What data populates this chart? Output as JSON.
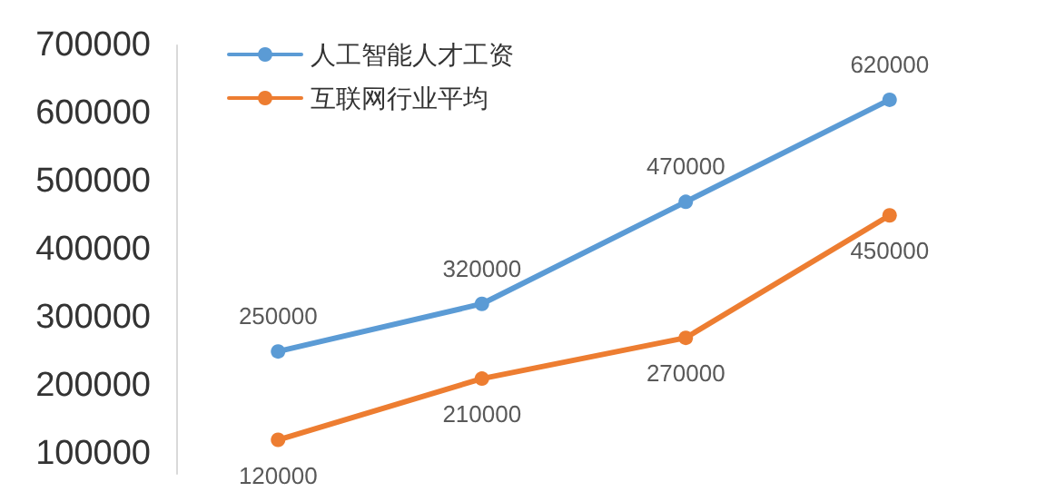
{
  "chart_data": {
    "type": "line",
    "categories": [
      null,
      null,
      null,
      null
    ],
    "series": [
      {
        "name": "人工智能人才工资",
        "color": "#5b9bd5",
        "values": [
          250000,
          320000,
          470000,
          620000
        ]
      },
      {
        "name": "互联网行业平均",
        "color": "#ed7d31",
        "values": [
          120000,
          210000,
          270000,
          450000
        ]
      }
    ],
    "ylim": [
      70000,
      700000
    ],
    "yticks": [
      100000,
      200000,
      300000,
      400000,
      500000,
      600000,
      700000
    ],
    "data_labels": true,
    "grid": false,
    "legend": "top left",
    "marker": "circle",
    "line_style": "solid"
  }
}
